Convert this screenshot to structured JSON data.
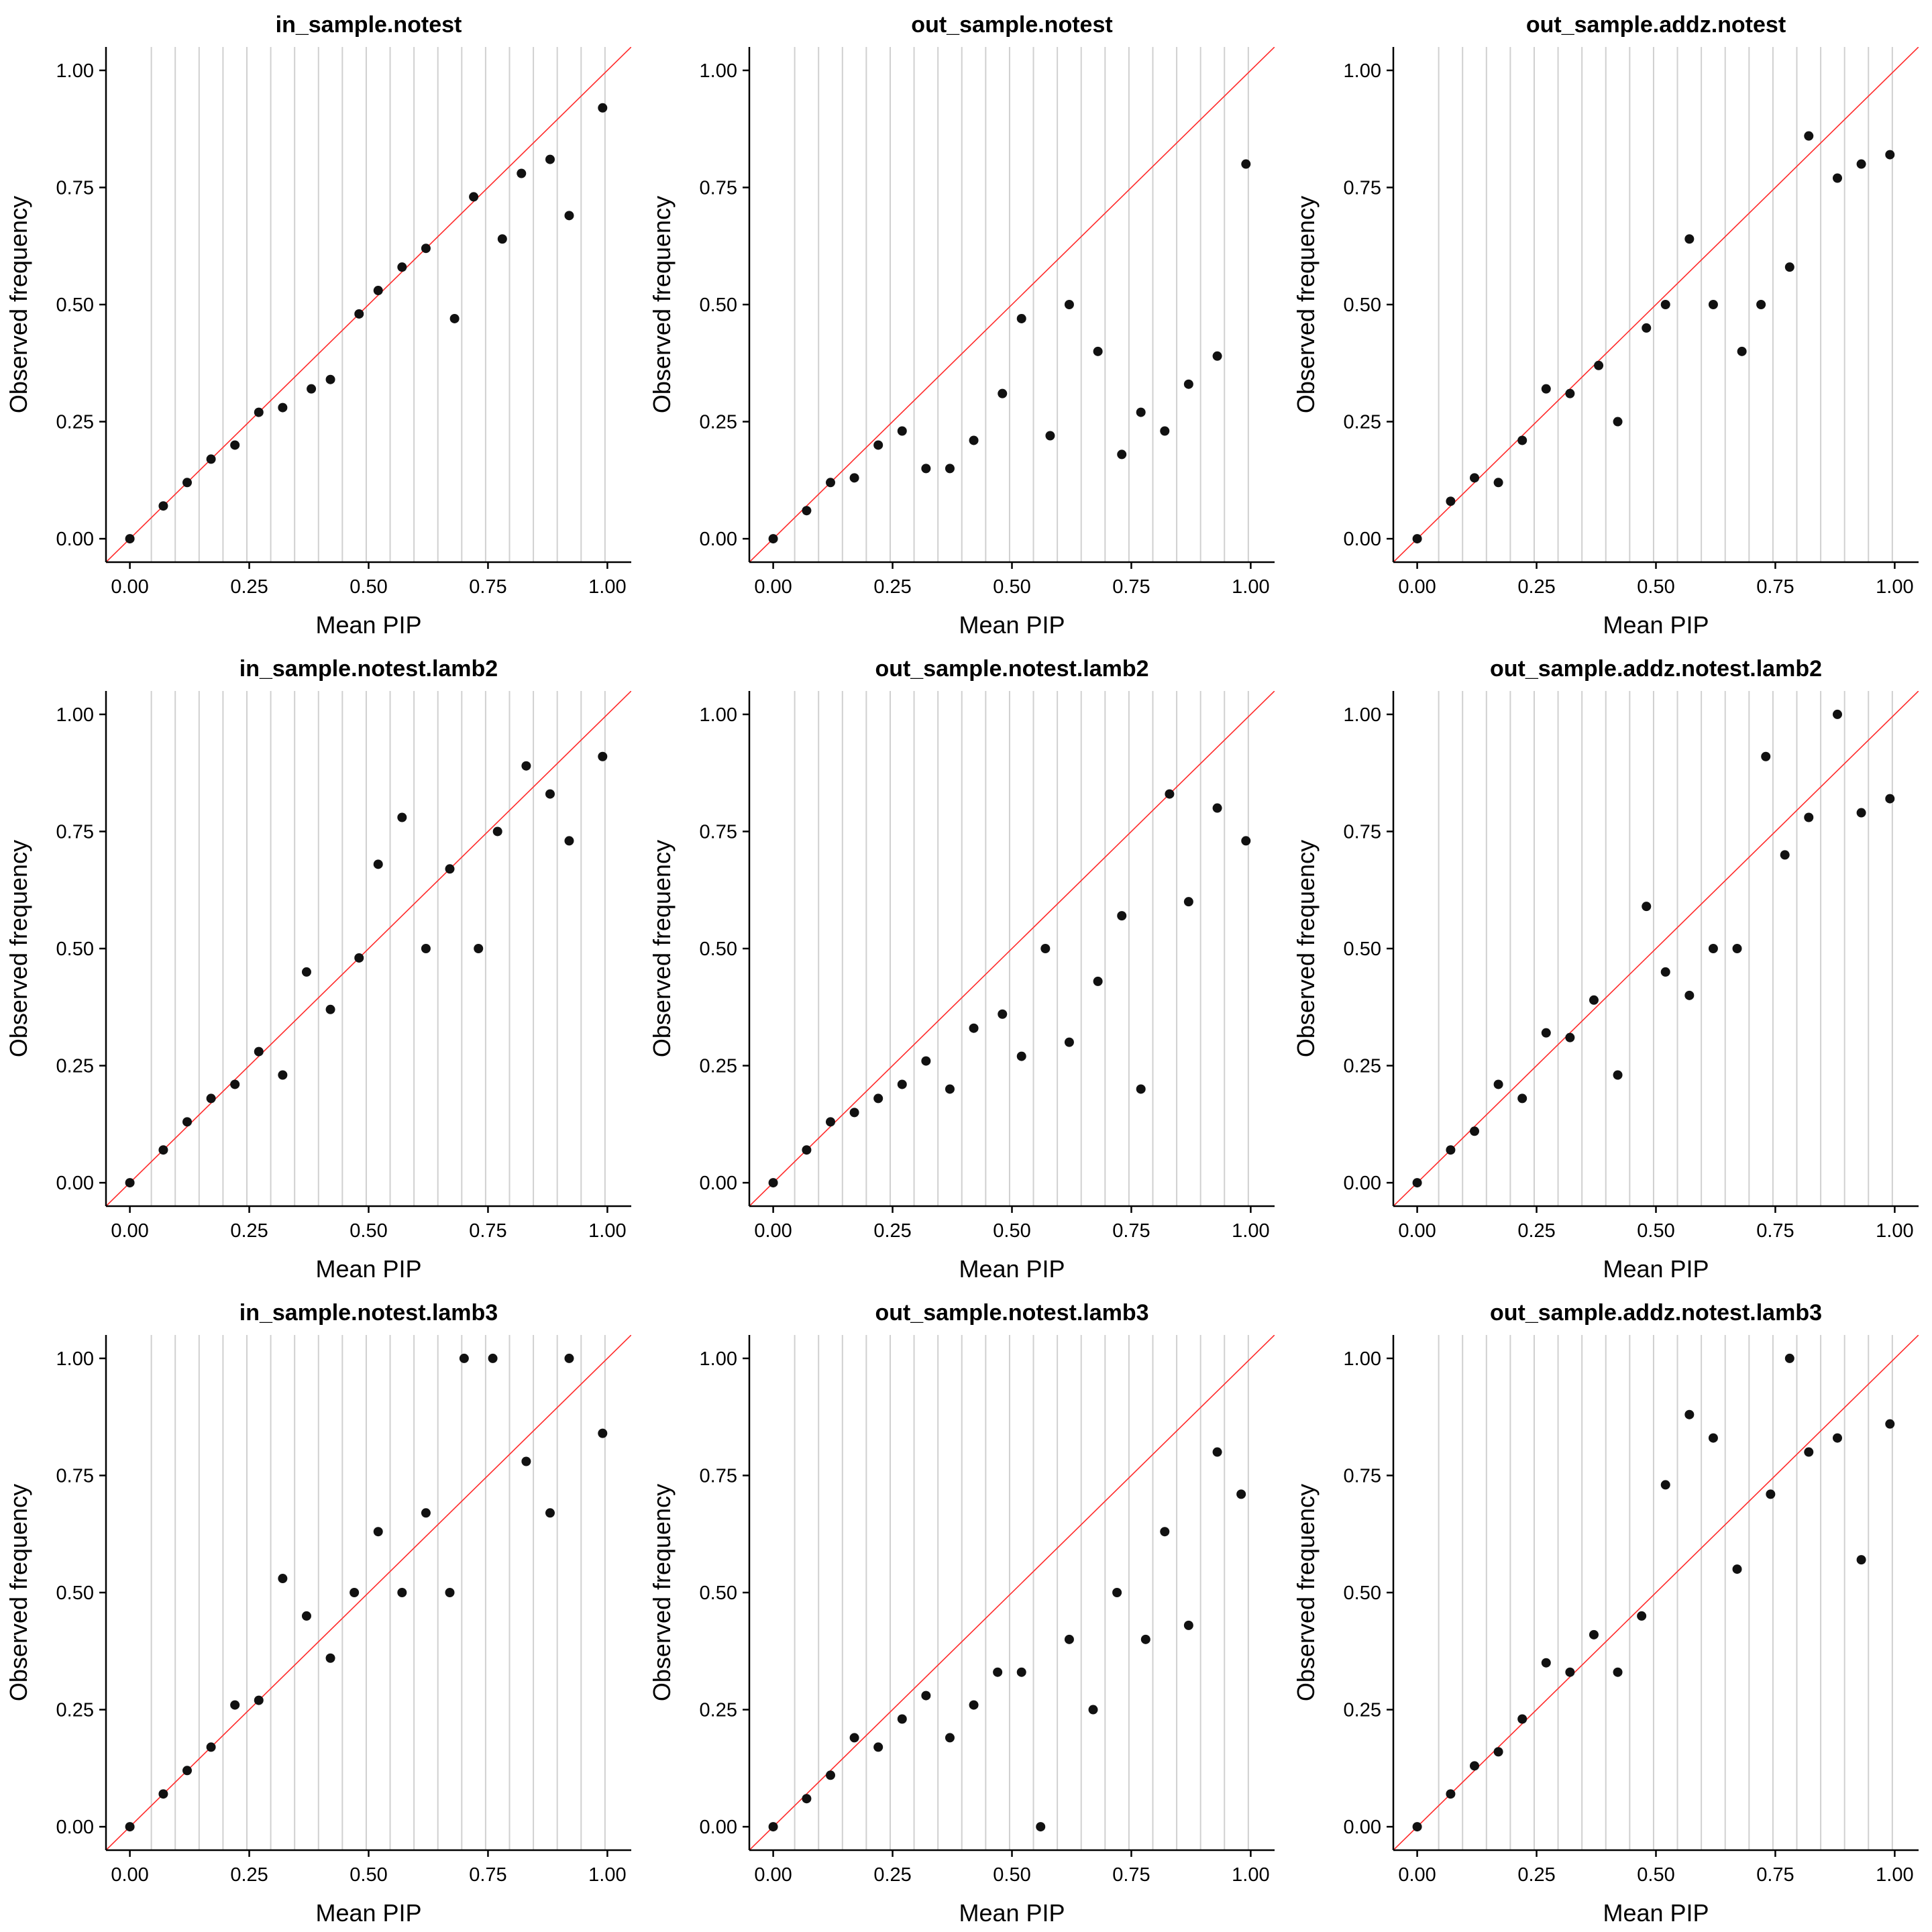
{
  "colors": {
    "reference_line": "#ff2a2a",
    "points": "#111111",
    "grid": "#d0d0d0"
  },
  "chart_data": [
    {
      "type": "scatter",
      "title": "in_sample.notest",
      "xlabel": "Mean PIP",
      "ylabel": "Observed frequency",
      "xlim": [
        0,
        1
      ],
      "ylim": [
        0,
        1
      ],
      "xticks": [
        "0.00",
        "0.25",
        "0.50",
        "0.75",
        "1.00"
      ],
      "yticks": [
        "0.00",
        "0.25",
        "0.50",
        "0.75",
        "1.00"
      ],
      "reference_line": "y = x",
      "x": [
        0.0,
        0.07,
        0.12,
        0.17,
        0.22,
        0.27,
        0.32,
        0.38,
        0.42,
        0.48,
        0.52,
        0.57,
        0.62,
        0.68,
        0.72,
        0.78,
        0.82,
        0.88,
        0.92,
        0.99
      ],
      "y": [
        0.0,
        0.07,
        0.12,
        0.17,
        0.2,
        0.27,
        0.28,
        0.32,
        0.34,
        0.48,
        0.53,
        0.58,
        0.62,
        0.47,
        0.73,
        0.64,
        0.78,
        0.81,
        0.69,
        0.92
      ]
    },
    {
      "type": "scatter",
      "title": "out_sample.notest",
      "xlabel": "Mean PIP",
      "ylabel": "Observed frequency",
      "xlim": [
        0,
        1
      ],
      "ylim": [
        0,
        1
      ],
      "xticks": [
        "0.00",
        "0.25",
        "0.50",
        "0.75",
        "1.00"
      ],
      "yticks": [
        "0.00",
        "0.25",
        "0.50",
        "0.75",
        "1.00"
      ],
      "reference_line": "y = x",
      "x": [
        0.0,
        0.07,
        0.12,
        0.17,
        0.22,
        0.27,
        0.32,
        0.37,
        0.42,
        0.48,
        0.52,
        0.58,
        0.62,
        0.68,
        0.73,
        0.77,
        0.82,
        0.87,
        0.93,
        0.99
      ],
      "y": [
        0.0,
        0.06,
        0.12,
        0.13,
        0.2,
        0.23,
        0.15,
        0.15,
        0.21,
        0.31,
        0.47,
        0.22,
        0.5,
        0.4,
        0.18,
        0.27,
        0.23,
        0.33,
        0.39,
        0.8
      ]
    },
    {
      "type": "scatter",
      "title": "out_sample.addz.notest",
      "xlabel": "Mean PIP",
      "ylabel": "Observed frequency",
      "xlim": [
        0,
        1
      ],
      "ylim": [
        0,
        1
      ],
      "xticks": [
        "0.00",
        "0.25",
        "0.50",
        "0.75",
        "1.00"
      ],
      "yticks": [
        "0.00",
        "0.25",
        "0.50",
        "0.75",
        "1.00"
      ],
      "reference_line": "y = x",
      "x": [
        0.0,
        0.07,
        0.12,
        0.17,
        0.22,
        0.27,
        0.32,
        0.38,
        0.42,
        0.48,
        0.52,
        0.57,
        0.62,
        0.68,
        0.72,
        0.78,
        0.82,
        0.88,
        0.93,
        0.99
      ],
      "y": [
        0.0,
        0.08,
        0.13,
        0.12,
        0.21,
        0.32,
        0.31,
        0.37,
        0.25,
        0.45,
        0.5,
        0.64,
        0.5,
        0.4,
        0.5,
        0.58,
        0.86,
        0.77,
        0.8,
        0.82
      ]
    },
    {
      "type": "scatter",
      "title": "in_sample.notest.lamb2",
      "xlabel": "Mean PIP",
      "ylabel": "Observed frequency",
      "xlim": [
        0,
        1
      ],
      "ylim": [
        0,
        1
      ],
      "xticks": [
        "0.00",
        "0.25",
        "0.50",
        "0.75",
        "1.00"
      ],
      "yticks": [
        "0.00",
        "0.25",
        "0.50",
        "0.75",
        "1.00"
      ],
      "reference_line": "y = x",
      "x": [
        0.0,
        0.07,
        0.12,
        0.17,
        0.22,
        0.27,
        0.32,
        0.37,
        0.42,
        0.48,
        0.52,
        0.57,
        0.62,
        0.67,
        0.73,
        0.77,
        0.83,
        0.88,
        0.92,
        0.99
      ],
      "y": [
        0.0,
        0.07,
        0.13,
        0.18,
        0.21,
        0.28,
        0.23,
        0.45,
        0.37,
        0.48,
        0.68,
        0.78,
        0.5,
        0.67,
        0.5,
        0.75,
        0.89,
        0.83,
        0.73,
        0.91
      ]
    },
    {
      "type": "scatter",
      "title": "out_sample.notest.lamb2",
      "xlabel": "Mean PIP",
      "ylabel": "Observed frequency",
      "xlim": [
        0,
        1
      ],
      "ylim": [
        0,
        1
      ],
      "xticks": [
        "0.00",
        "0.25",
        "0.50",
        "0.75",
        "1.00"
      ],
      "yticks": [
        "0.00",
        "0.25",
        "0.50",
        "0.75",
        "1.00"
      ],
      "reference_line": "y = x",
      "x": [
        0.0,
        0.07,
        0.12,
        0.17,
        0.22,
        0.27,
        0.32,
        0.37,
        0.42,
        0.48,
        0.52,
        0.57,
        0.62,
        0.68,
        0.73,
        0.77,
        0.83,
        0.87,
        0.93,
        0.99
      ],
      "y": [
        0.0,
        0.07,
        0.13,
        0.15,
        0.18,
        0.21,
        0.26,
        0.2,
        0.33,
        0.36,
        0.27,
        0.5,
        0.3,
        0.43,
        0.57,
        0.2,
        0.83,
        0.6,
        0.8,
        0.73
      ]
    },
    {
      "type": "scatter",
      "title": "out_sample.addz.notest.lamb2",
      "xlabel": "Mean PIP",
      "ylabel": "Observed frequency",
      "xlim": [
        0,
        1
      ],
      "ylim": [
        0,
        1
      ],
      "xticks": [
        "0.00",
        "0.25",
        "0.50",
        "0.75",
        "1.00"
      ],
      "yticks": [
        "0.00",
        "0.25",
        "0.50",
        "0.75",
        "1.00"
      ],
      "reference_line": "y = x",
      "x": [
        0.0,
        0.07,
        0.12,
        0.17,
        0.22,
        0.27,
        0.32,
        0.37,
        0.42,
        0.48,
        0.52,
        0.57,
        0.62,
        0.67,
        0.73,
        0.77,
        0.82,
        0.88,
        0.93,
        0.99
      ],
      "y": [
        0.0,
        0.07,
        0.11,
        0.21,
        0.18,
        0.32,
        0.31,
        0.39,
        0.23,
        0.59,
        0.45,
        0.4,
        0.5,
        0.5,
        0.91,
        0.7,
        0.78,
        1.0,
        0.79,
        0.82
      ]
    },
    {
      "type": "scatter",
      "title": "in_sample.notest.lamb3",
      "xlabel": "Mean PIP",
      "ylabel": "Observed frequency",
      "xlim": [
        0,
        1
      ],
      "ylim": [
        0,
        1
      ],
      "xticks": [
        "0.00",
        "0.25",
        "0.50",
        "0.75",
        "1.00"
      ],
      "yticks": [
        "0.00",
        "0.25",
        "0.50",
        "0.75",
        "1.00"
      ],
      "reference_line": "y = x",
      "x": [
        0.0,
        0.07,
        0.12,
        0.17,
        0.22,
        0.27,
        0.32,
        0.37,
        0.42,
        0.47,
        0.52,
        0.57,
        0.62,
        0.67,
        0.7,
        0.76,
        0.83,
        0.88,
        0.92,
        0.99
      ],
      "y": [
        0.0,
        0.07,
        0.12,
        0.17,
        0.26,
        0.27,
        0.53,
        0.45,
        0.36,
        0.5,
        0.63,
        0.5,
        0.67,
        0.5,
        1.0,
        1.0,
        0.78,
        0.67,
        1.0,
        0.84
      ]
    },
    {
      "type": "scatter",
      "title": "out_sample.notest.lamb3",
      "xlabel": "Mean PIP",
      "ylabel": "Observed frequency",
      "xlim": [
        0,
        1
      ],
      "ylim": [
        0,
        1
      ],
      "xticks": [
        "0.00",
        "0.25",
        "0.50",
        "0.75",
        "1.00"
      ],
      "yticks": [
        "0.00",
        "0.25",
        "0.50",
        "0.75",
        "1.00"
      ],
      "reference_line": "y = x",
      "x": [
        0.0,
        0.07,
        0.12,
        0.17,
        0.22,
        0.27,
        0.32,
        0.37,
        0.42,
        0.47,
        0.52,
        0.56,
        0.62,
        0.67,
        0.72,
        0.78,
        0.82,
        0.87,
        0.93,
        0.98
      ],
      "y": [
        0.0,
        0.06,
        0.11,
        0.19,
        0.17,
        0.23,
        0.28,
        0.19,
        0.26,
        0.33,
        0.33,
        0.0,
        0.4,
        0.25,
        0.5,
        0.4,
        0.63,
        0.43,
        0.8,
        0.71
      ]
    },
    {
      "type": "scatter",
      "title": "out_sample.addz.notest.lamb3",
      "xlabel": "Mean PIP",
      "ylabel": "Observed frequency",
      "xlim": [
        0,
        1
      ],
      "ylim": [
        0,
        1
      ],
      "xticks": [
        "0.00",
        "0.25",
        "0.50",
        "0.75",
        "1.00"
      ],
      "yticks": [
        "0.00",
        "0.25",
        "0.50",
        "0.75",
        "1.00"
      ],
      "reference_line": "y = x",
      "x": [
        0.0,
        0.07,
        0.12,
        0.17,
        0.22,
        0.27,
        0.32,
        0.37,
        0.42,
        0.47,
        0.52,
        0.57,
        0.62,
        0.67,
        0.74,
        0.78,
        0.82,
        0.88,
        0.93,
        0.99
      ],
      "y": [
        0.0,
        0.07,
        0.13,
        0.16,
        0.23,
        0.35,
        0.33,
        0.41,
        0.33,
        0.45,
        0.73,
        0.88,
        0.83,
        0.55,
        0.71,
        1.0,
        0.8,
        0.83,
        0.57,
        0.86
      ]
    }
  ]
}
